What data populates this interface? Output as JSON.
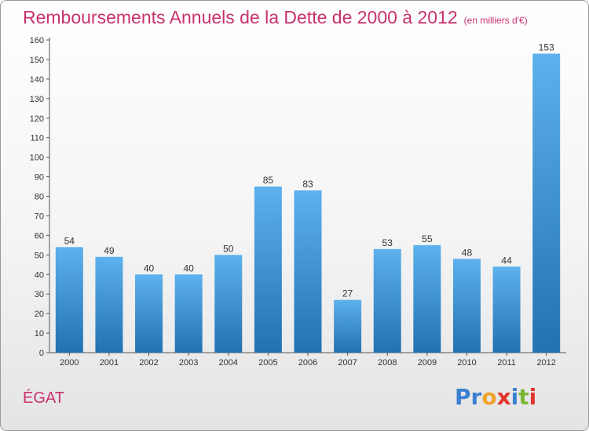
{
  "header": {
    "title": "Remboursements Annuels de la Dette de 2000 à 2012",
    "subtitle": "(en milliers d'€)"
  },
  "footer": {
    "commune": "ÉGAT",
    "brand": "Proxiti"
  },
  "colors": {
    "title": "#c8326e",
    "bar_light": "#5db1ec",
    "bar_dark": "#2271b2",
    "logo_letters": [
      "#3b7fd1",
      "#3b7fd1",
      "#f0a32b",
      "#e2352c",
      "#3b7fd1",
      "#7ab833",
      "#e2352c"
    ]
  },
  "chart_data": {
    "type": "bar",
    "title": "Remboursements Annuels de la Dette de 2000 à 2012",
    "subtitle": "(en milliers d'€)",
    "categories": [
      "2000",
      "2001",
      "2002",
      "2003",
      "2004",
      "2005",
      "2006",
      "2007",
      "2008",
      "2009",
      "2010",
      "2011",
      "2012"
    ],
    "values": [
      54,
      49,
      40,
      40,
      50,
      85,
      83,
      27,
      53,
      55,
      48,
      44,
      153
    ],
    "ylim": [
      0,
      160
    ],
    "yticks": [
      0,
      10,
      20,
      30,
      40,
      50,
      60,
      70,
      80,
      90,
      100,
      110,
      120,
      130,
      140,
      150,
      160
    ],
    "grid": false,
    "data_labels": true
  }
}
